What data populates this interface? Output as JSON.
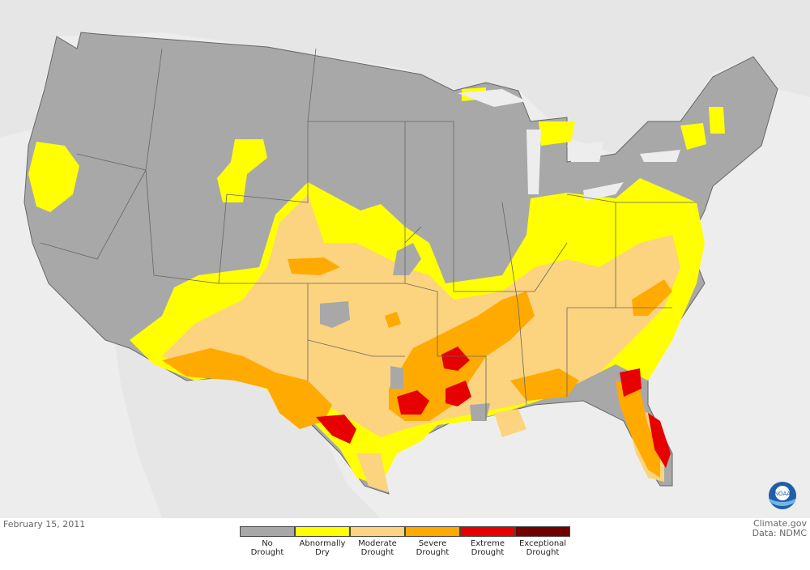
{
  "date": "February 15, 2011",
  "credit": {
    "line1": "Climate.gov",
    "line2": "Data: NDMC"
  },
  "logo": {
    "name": "noaa-logo",
    "text": "NOAA"
  },
  "legend": [
    {
      "line1": "No",
      "line2": "Drought",
      "color": "#a8a8a8"
    },
    {
      "line1": "Abnormally",
      "line2": "Dry",
      "color": "#ffff00"
    },
    {
      "line1": "Moderate",
      "line2": "Drought",
      "color": "#fcd37f"
    },
    {
      "line1": "Severe",
      "line2": "Drought",
      "color": "#ffaa00"
    },
    {
      "line1": "Extreme",
      "line2": "Drought",
      "color": "#e60000"
    },
    {
      "line1": "Exceptional",
      "line2": "Drought",
      "color": "#730000"
    }
  ],
  "colors": {
    "land_background": "#e4e4e4",
    "ocean": "#ededed",
    "state_border": "#666666"
  }
}
